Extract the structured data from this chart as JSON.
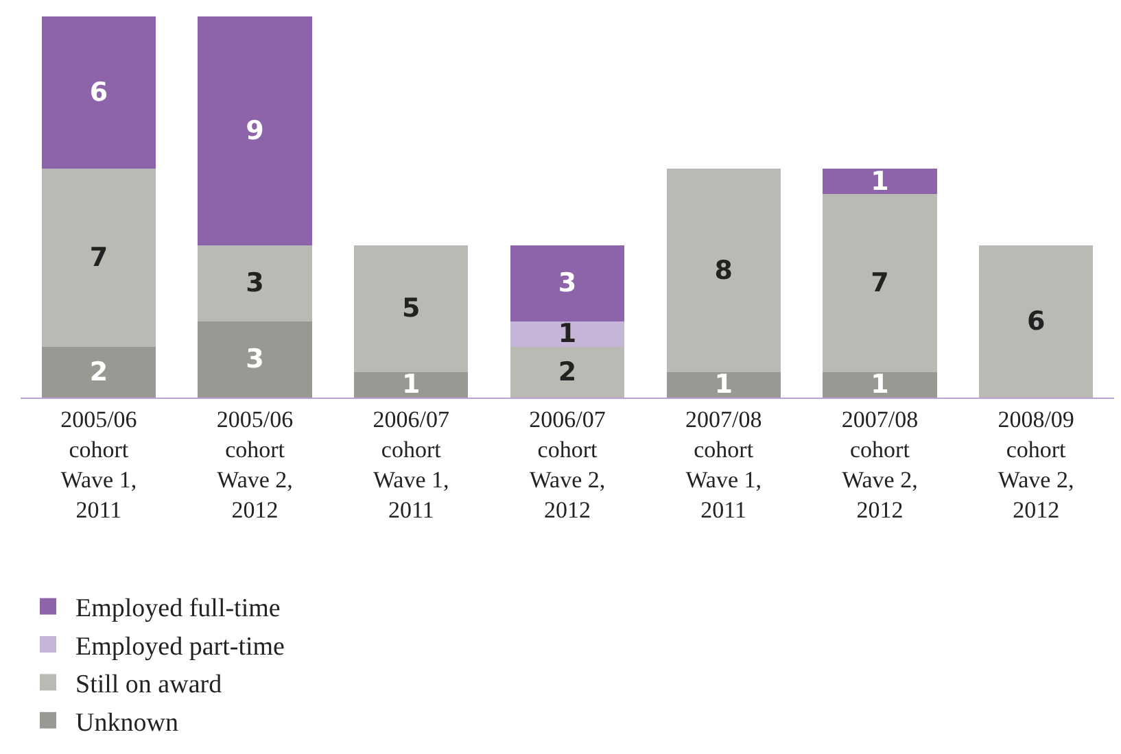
{
  "chart_data": {
    "type": "bar",
    "stacked": true,
    "data_labels": true,
    "legend": "bottom left",
    "tick_labels": "x",
    "ylim": [
      0,
      15
    ],
    "categories": [
      "2005/06\ncohort\nWave 1,\n2011",
      "2005/06\ncohort\nWave 2,\n2012",
      "2006/07\ncohort\nWave 1,\n2011",
      "2006/07\ncohort\nWave 2,\n2012",
      "2007/08\ncohort\nWave 1,\n2011",
      "2007/08\ncohort\nWave 2,\n2012",
      "2008/09\ncohort\nWave 2,\n2012"
    ],
    "series": [
      {
        "name": "Unknown",
        "color": "#999993",
        "values": [
          2,
          3,
          1,
          null,
          1,
          1,
          null
        ]
      },
      {
        "name": "Still on award",
        "color": "#babab5",
        "values": [
          7,
          3,
          5,
          2,
          8,
          7,
          6
        ]
      },
      {
        "name": "Employed part-time",
        "color": "#c6b4d9",
        "values": [
          null,
          null,
          null,
          1,
          null,
          null,
          null
        ]
      },
      {
        "name": "Employed full-time",
        "color": "#8d63a9",
        "values": [
          6,
          9,
          null,
          3,
          null,
          1,
          null
        ]
      }
    ]
  }
}
